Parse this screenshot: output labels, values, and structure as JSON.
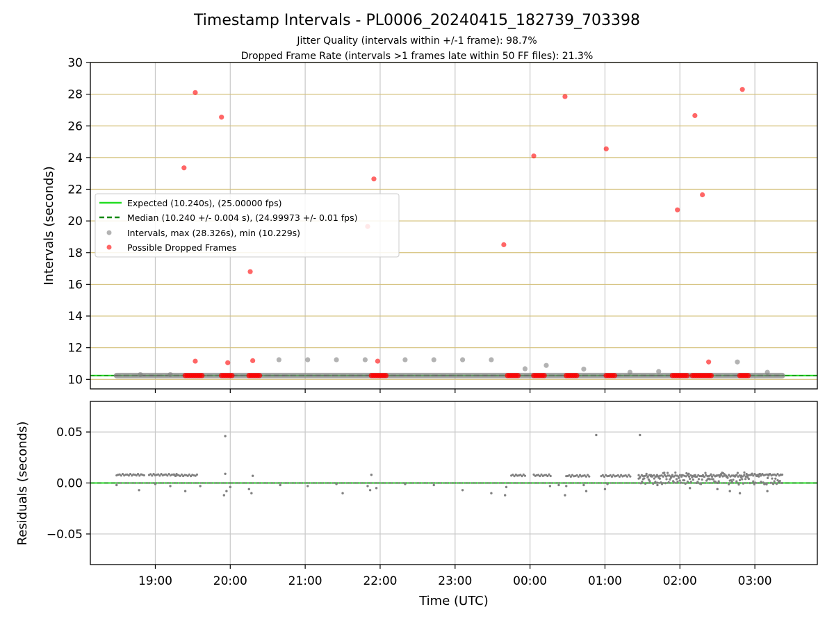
{
  "figure": {
    "title": "Timestamp Intervals - PL0006_20240415_182739_703398",
    "subtitle_1": "Jitter Quality (intervals within +/-1 frame): 98.7%",
    "subtitle_2": "Dropped Frame Rate (intervals >1 frames late within 50 FF files): 21.3%"
  },
  "chart_data": [
    {
      "type": "scatter",
      "xlabel": "",
      "ylabel": "Intervals (seconds)",
      "x_tick_labels": [
        "19:00",
        "20:00",
        "21:00",
        "22:00",
        "23:00",
        "00:00",
        "01:00",
        "02:00",
        "03:00"
      ],
      "y_ticks": [
        10,
        12,
        14,
        16,
        18,
        20,
        22,
        24,
        26,
        28,
        30
      ],
      "ylim": [
        9.4,
        30
      ],
      "xlim_hours_utc": [
        "18:08",
        "03:50"
      ],
      "grid": "on",
      "legend_placement": "center-left",
      "legend": [
        "Expected (10.240s), (25.00000 fps)",
        "Median (10.240 +/- 0.004 s), (24.99973 +/- 0.01 fps)",
        "Intervals, max (28.326s), min (10.229s)",
        "Possible Dropped Frames"
      ],
      "series": [
        {
          "name": "Expected (10.240s), (25.00000 fps)",
          "style": "solid line",
          "color": "#22dd22",
          "y": 10.24
        },
        {
          "name": "Median (10.240 +/- 0.004 s), (24.99973 +/- 0.01 fps)",
          "style": "dashed line",
          "color": "#118811",
          "y": 10.24
        },
        {
          "name": "Intervals, max (28.326s), min (10.229s)",
          "color": "#808080",
          "baseline": {
            "x_start": "18:29",
            "x_end": "03:22",
            "y": 10.24
          },
          "outliers": [
            {
              "x": "18:48",
              "y": 10.3
            },
            {
              "x": "19:12",
              "y": 10.3
            },
            {
              "x": "20:39",
              "y": 11.24
            },
            {
              "x": "21:02",
              "y": 11.24
            },
            {
              "x": "21:25",
              "y": 11.24
            },
            {
              "x": "21:48",
              "y": 11.24
            },
            {
              "x": "22:20",
              "y": 11.24
            },
            {
              "x": "22:43",
              "y": 11.24
            },
            {
              "x": "23:06",
              "y": 11.24
            },
            {
              "x": "23:29",
              "y": 11.24
            },
            {
              "x": "23:56",
              "y": 10.67
            },
            {
              "x": "00:13",
              "y": 10.88
            },
            {
              "x": "00:43",
              "y": 10.65
            },
            {
              "x": "01:20",
              "y": 10.45
            },
            {
              "x": "01:43",
              "y": 10.5
            },
            {
              "x": "02:46",
              "y": 11.1
            },
            {
              "x": "03:10",
              "y": 10.45
            }
          ]
        },
        {
          "name": "Possible Dropped Frames",
          "color": "#ff0000",
          "clusters": [
            {
              "x_start": "19:24",
              "x_end": "19:38",
              "y": 10.24
            },
            {
              "x_start": "19:53",
              "x_end": "20:02",
              "y": 10.24
            },
            {
              "x_start": "20:15",
              "x_end": "20:24",
              "y": 10.24
            },
            {
              "x_start": "21:53",
              "x_end": "22:05",
              "y": 10.24
            },
            {
              "x_start": "23:42",
              "x_end": "23:51",
              "y": 10.24
            },
            {
              "x_start": "00:03",
              "x_end": "00:12",
              "y": 10.24
            },
            {
              "x_start": "00:29",
              "x_end": "00:38",
              "y": 10.24
            },
            {
              "x_start": "01:01",
              "x_end": "01:09",
              "y": 10.24
            },
            {
              "x_start": "01:54",
              "x_end": "02:06",
              "y": 10.24
            },
            {
              "x_start": "02:10",
              "x_end": "02:26",
              "y": 10.24
            },
            {
              "x_start": "02:48",
              "x_end": "02:56",
              "y": 10.24
            }
          ],
          "points": [
            {
              "x": "19:23",
              "y": 23.35
            },
            {
              "x": "19:32",
              "y": 28.1
            },
            {
              "x": "19:53",
              "y": 26.55
            },
            {
              "x": "20:16",
              "y": 16.8
            },
            {
              "x": "21:50",
              "y": 19.65
            },
            {
              "x": "21:55",
              "y": 22.65
            },
            {
              "x": "23:39",
              "y": 18.5
            },
            {
              "x": "00:03",
              "y": 24.1
            },
            {
              "x": "00:28",
              "y": 27.85
            },
            {
              "x": "01:01",
              "y": 24.55
            },
            {
              "x": "01:58",
              "y": 20.7
            },
            {
              "x": "02:12",
              "y": 26.65
            },
            {
              "x": "02:18",
              "y": 21.65
            },
            {
              "x": "02:50",
              "y": 28.3
            },
            {
              "x": "19:32",
              "y": 11.15
            },
            {
              "x": "19:58",
              "y": 11.05
            },
            {
              "x": "20:18",
              "y": 11.18
            },
            {
              "x": "21:58",
              "y": 11.15
            },
            {
              "x": "02:23",
              "y": 11.1
            }
          ]
        }
      ]
    },
    {
      "type": "scatter",
      "xlabel": "Time (UTC)",
      "ylabel": "Residuals (seconds)",
      "x_tick_labels": [
        "19:00",
        "20:00",
        "21:00",
        "22:00",
        "23:00",
        "00:00",
        "01:00",
        "02:00",
        "03:00"
      ],
      "y_tick_labels": [
        "0.05",
        "0.00",
        "−0.05"
      ],
      "ylim": [
        -0.08,
        0.08
      ],
      "grid": "on",
      "series": [
        {
          "style": "zero line",
          "color": "#22dd22",
          "y": 0
        },
        {
          "color": "#808080",
          "segments": [
            {
              "x_start": "18:29",
              "x_end": "18:52",
              "y": 0.008
            },
            {
              "x_start": "18:55",
              "x_end": "19:18",
              "y": 0.008
            },
            {
              "x_start": "19:15",
              "x_end": "19:34",
              "y": 0.0075
            },
            {
              "x_start": "23:45",
              "x_end": "23:57",
              "y": 0.0075
            },
            {
              "x_start": "00:03",
              "x_end": "00:17",
              "y": 0.0075
            },
            {
              "x_start": "00:29",
              "x_end": "00:48",
              "y": 0.007
            },
            {
              "x_start": "00:57",
              "x_end": "01:21",
              "y": 0.007
            },
            {
              "x_start": "01:27",
              "x_end": "02:55",
              "y": 0.007
            },
            {
              "x_start": "02:55",
              "x_end": "03:22",
              "y": 0.008
            }
          ],
          "outliers": [
            {
              "x": "19:56",
              "y": 0.046
            },
            {
              "x": "00:53",
              "y": 0.047
            },
            {
              "x": "01:28",
              "y": 0.047
            },
            {
              "x": "18:29",
              "y": -0.002
            },
            {
              "x": "18:47",
              "y": -0.007
            },
            {
              "x": "19:00",
              "y": -0.001
            },
            {
              "x": "19:12",
              "y": -0.003
            },
            {
              "x": "19:24",
              "y": -0.008
            },
            {
              "x": "19:36",
              "y": -0.003
            },
            {
              "x": "19:55",
              "y": -0.012
            },
            {
              "x": "19:56",
              "y": 0.009
            },
            {
              "x": "19:57",
              "y": -0.008
            },
            {
              "x": "20:00",
              "y": -0.004
            },
            {
              "x": "20:15",
              "y": -0.006
            },
            {
              "x": "20:17",
              "y": -0.01
            },
            {
              "x": "20:18",
              "y": 0.007
            },
            {
              "x": "20:40",
              "y": -0.002
            },
            {
              "x": "21:02",
              "y": -0.003
            },
            {
              "x": "21:25",
              "y": -0.001
            },
            {
              "x": "21:30",
              "y": -0.01
            },
            {
              "x": "21:50",
              "y": -0.003
            },
            {
              "x": "21:52",
              "y": -0.007
            },
            {
              "x": "21:53",
              "y": 0.008
            },
            {
              "x": "21:57",
              "y": -0.005
            },
            {
              "x": "22:20",
              "y": -0.001
            },
            {
              "x": "22:43",
              "y": -0.002
            },
            {
              "x": "23:06",
              "y": -0.007
            },
            {
              "x": "23:29",
              "y": -0.01
            },
            {
              "x": "23:40",
              "y": -0.012
            },
            {
              "x": "23:41",
              "y": -0.004
            },
            {
              "x": "00:16",
              "y": -0.003
            },
            {
              "x": "00:23",
              "y": -0.002
            },
            {
              "x": "00:28",
              "y": -0.012
            },
            {
              "x": "00:29",
              "y": -0.003
            },
            {
              "x": "00:43",
              "y": -0.002
            },
            {
              "x": "00:45",
              "y": -0.008
            },
            {
              "x": "01:02",
              "y": -0.001
            },
            {
              "x": "01:00",
              "y": -0.006
            },
            {
              "x": "01:42",
              "y": -0.002
            },
            {
              "x": "02:08",
              "y": -0.005
            },
            {
              "x": "02:30",
              "y": -0.006
            },
            {
              "x": "02:40",
              "y": -0.008
            },
            {
              "x": "02:48",
              "y": -0.01
            },
            {
              "x": "03:10",
              "y": -0.008
            }
          ]
        }
      ]
    }
  ]
}
